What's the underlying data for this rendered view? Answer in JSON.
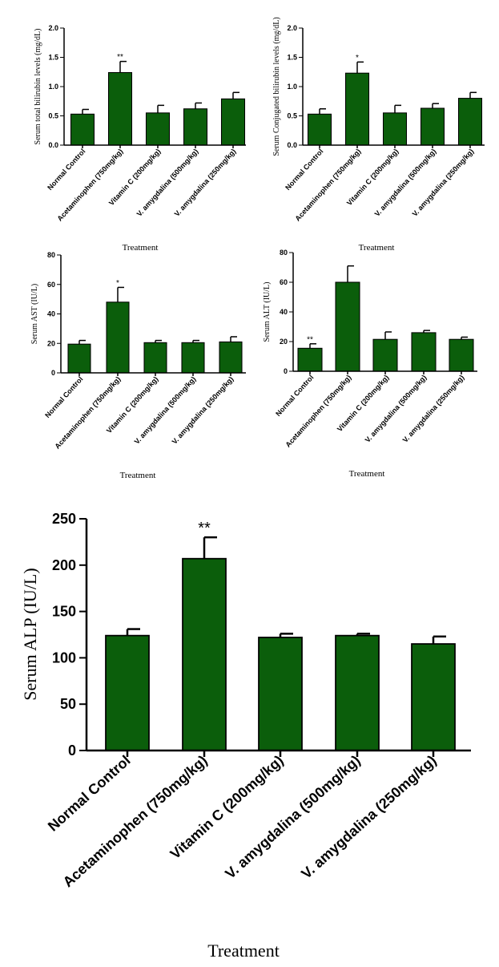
{
  "colors": {
    "bar": "#0b5e0b",
    "axis": "#000000"
  },
  "chart_data": [
    {
      "type": "bar",
      "categories": [
        "Normal Control",
        "Acetaminophen (750mg/kg)",
        "Vitamin C (200mg/kg)",
        "V. amygdalina (500mg/kg)",
        "V. amygdalina (250mg/kg)"
      ],
      "values": [
        0.53,
        1.24,
        0.55,
        0.62,
        0.79
      ],
      "errors": [
        0.08,
        0.19,
        0.13,
        0.1,
        0.11
      ],
      "significance": [
        "",
        "**",
        "",
        "",
        ""
      ],
      "ylabel": "Serum total bilirubin levels (mg/dL)",
      "xlabel": "Treatment",
      "ylim": [
        0,
        2.0
      ],
      "yticks": [
        "0.0",
        "0.5",
        "1.0",
        "1.5",
        "2.0"
      ]
    },
    {
      "type": "bar",
      "categories": [
        "Normal Control",
        "Acetaminophen (750mg/kg)",
        "Vitamin C (200mg/kg)",
        "V. amygdalina (500mg/kg)",
        "V. amygdalina (250mg/kg)"
      ],
      "values": [
        0.53,
        1.23,
        0.55,
        0.63,
        0.8
      ],
      "errors": [
        0.09,
        0.19,
        0.13,
        0.08,
        0.1
      ],
      "significance": [
        "",
        "*",
        "",
        "",
        ""
      ],
      "ylabel": "Serum Conjugated bilirubin levels (mg/dL)",
      "xlabel": "Treatment",
      "ylim": [
        0,
        2.0
      ],
      "yticks": [
        "0.0",
        "0.5",
        "1.0",
        "1.5",
        "2.0"
      ]
    },
    {
      "type": "bar",
      "categories": [
        "Normal Control",
        "Acetaminophen (750mg/kg)",
        "Vitamin C (200mg/kg)",
        "V. amygdalina (500mg/kg)",
        "V. amygdalina (250mg/kg)"
      ],
      "values": [
        19.5,
        48,
        20.5,
        20.5,
        21
      ],
      "errors": [
        2.5,
        10,
        1.5,
        1.5,
        3.5
      ],
      "significance": [
        "",
        "*",
        "",
        "",
        ""
      ],
      "ylabel": "Serum AST (IU/L)",
      "xlabel": "Treatment",
      "ylim": [
        0,
        80
      ],
      "yticks": [
        "0",
        "20",
        "40",
        "60",
        "80"
      ]
    },
    {
      "type": "bar",
      "categories": [
        "Normal Control",
        "Acetaminophen (750mg/kg)",
        "Vitamin C (200mg/kg)",
        "V. amygdalina (500mg/kg)",
        "V. amygdalina (250mg/kg)"
      ],
      "values": [
        15.5,
        60,
        21.5,
        26,
        21.5
      ],
      "errors": [
        3,
        11,
        5,
        1.5,
        1.5
      ],
      "significance": [
        "**",
        "",
        "",
        "",
        ""
      ],
      "ylabel": "Serum ALT (IU/L)",
      "xlabel": "Treatment",
      "ylim": [
        0,
        80
      ],
      "yticks": [
        "0",
        "20",
        "40",
        "60",
        "80"
      ]
    },
    {
      "type": "bar",
      "categories": [
        "Normal Control",
        "Acetaminophen (750mg/kg)",
        "Vitamin C (200mg/kg)",
        "V. amygdalina (500mg/kg)",
        "V. amygdalina (250mg/kg)"
      ],
      "values": [
        124,
        207,
        122,
        124,
        115
      ],
      "errors": [
        7,
        23,
        4,
        2,
        8
      ],
      "significance": [
        "",
        "**",
        "",
        "",
        ""
      ],
      "ylabel": "Serum ALP (IU/L)",
      "xlabel": "Treatment",
      "ylim": [
        0,
        250
      ],
      "yticks": [
        "0",
        "50",
        "100",
        "150",
        "200",
        "250"
      ]
    }
  ]
}
